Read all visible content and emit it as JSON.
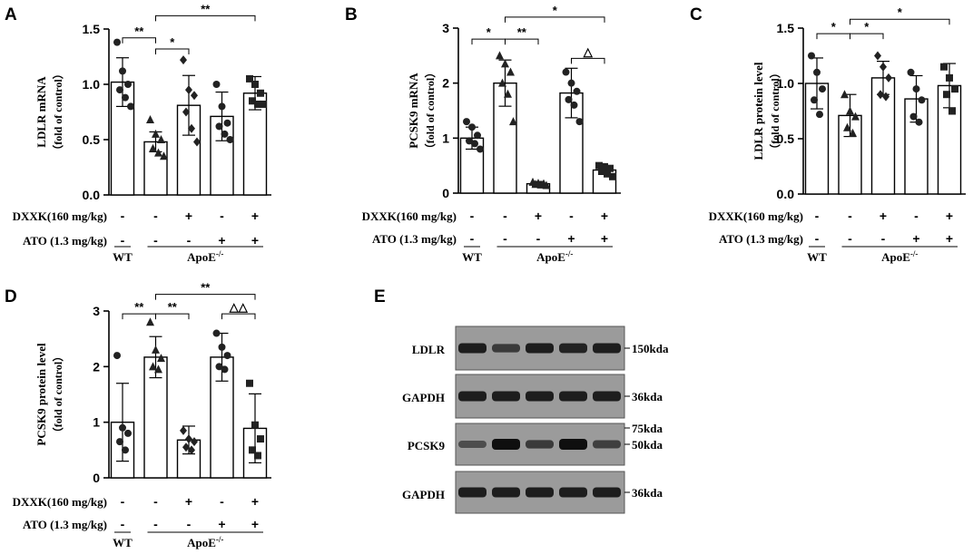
{
  "chart_data": [
    {
      "panel": "A",
      "type": "bar",
      "ylabel": "LDLR mRNA",
      "ylabel2": "（fold of control）",
      "ylim": [
        0,
        1.5
      ],
      "yticks": [
        "0.0",
        "0.5",
        "1.0",
        "1.5"
      ],
      "categories": [
        "WT",
        "ApoE-/-",
        "ApoE-/- + DXXK",
        "ApoE-/- + ATO",
        "ApoE-/- + DXXK + ATO"
      ],
      "values": [
        1.02,
        0.48,
        0.81,
        0.71,
        0.92
      ],
      "errors": [
        0.22,
        0.09,
        0.27,
        0.22,
        0.15
      ],
      "markers": [
        "circle",
        "triangle",
        "diamond",
        "circle",
        "square"
      ],
      "points": [
        [
          1.38,
          1.12,
          1.0,
          0.95,
          0.88,
          0.8
        ],
        [
          0.68,
          0.55,
          0.5,
          0.42,
          0.38,
          0.35
        ],
        [
          1.22,
          0.95,
          0.9,
          0.75,
          0.6,
          0.48
        ],
        [
          1.0,
          0.8,
          0.65,
          0.62,
          0.55,
          0.5
        ],
        [
          1.05,
          1.0,
          0.92,
          0.85,
          0.82,
          0.82
        ]
      ],
      "sig": [
        {
          "from": 0,
          "to": 1,
          "label": "**",
          "value": 1.42
        },
        {
          "from": 1,
          "to": 2,
          "label": "*",
          "value": 1.32
        },
        {
          "from": 1,
          "to": 4,
          "label": "**",
          "value": 1.62
        }
      ]
    },
    {
      "panel": "B",
      "type": "bar",
      "ylabel": "PCSK9 mRNA",
      "ylabel2": "（fold of control）",
      "ylim": [
        0,
        3
      ],
      "yticks": [
        "0",
        "1",
        "2",
        "3"
      ],
      "categories": [
        "WT",
        "ApoE-/-",
        "ApoE-/- + DXXK",
        "ApoE-/- + ATO",
        "ApoE-/- + DXXK + ATO"
      ],
      "values": [
        1.0,
        2.0,
        0.17,
        1.82,
        0.42
      ],
      "errors": [
        0.2,
        0.42,
        0.04,
        0.45,
        0.08
      ],
      "markers": [
        "circle",
        "triangle",
        "triangle",
        "circle",
        "square"
      ],
      "points": [
        [
          1.3,
          1.2,
          1.05,
          0.95,
          0.9,
          0.8
        ],
        [
          2.5,
          2.35,
          2.2,
          2.0,
          1.8,
          1.3
        ],
        [
          0.2,
          0.18,
          0.17,
          0.16,
          0.15,
          0.14
        ],
        [
          2.2,
          2.0,
          1.85,
          1.7,
          1.6,
          1.3
        ],
        [
          0.5,
          0.48,
          0.45,
          0.4,
          0.35,
          0.3
        ]
      ],
      "sig": [
        {
          "from": 0,
          "to": 1,
          "label": "*",
          "value": 2.8
        },
        {
          "from": 1,
          "to": 2,
          "label": "**",
          "value": 2.8
        },
        {
          "from": 3,
          "to": 4,
          "label": "△",
          "value": 2.45
        },
        {
          "from": 1,
          "to": 4,
          "label": "*",
          "value": 3.2
        }
      ]
    },
    {
      "panel": "C",
      "type": "bar",
      "ylabel": "LDLR  protein level",
      "ylabel2": "（fold of control）",
      "ylim": [
        0,
        1.5
      ],
      "yticks": [
        "0.0",
        "0.5",
        "1.0",
        "1.5"
      ],
      "categories": [
        "WT",
        "ApoE-/-",
        "ApoE-/- + DXXK",
        "ApoE-/- + ATO",
        "ApoE-/- + DXXK + ATO"
      ],
      "values": [
        1.0,
        0.71,
        1.05,
        0.86,
        0.98
      ],
      "errors": [
        0.23,
        0.19,
        0.15,
        0.21,
        0.2
      ],
      "markers": [
        "circle",
        "triangle",
        "diamond",
        "circle",
        "square"
      ],
      "points": [
        [
          1.25,
          1.1,
          0.95,
          0.85,
          0.72
        ],
        [
          0.9,
          0.75,
          0.7,
          0.6,
          0.55
        ],
        [
          1.25,
          1.15,
          1.05,
          0.9,
          0.88
        ],
        [
          1.1,
          0.95,
          0.85,
          0.7,
          0.65
        ],
        [
          1.15,
          1.05,
          0.95,
          0.9,
          0.75
        ]
      ],
      "sig": [
        {
          "from": 0,
          "to": 1,
          "label": "*",
          "value": 1.45
        },
        {
          "from": 1,
          "to": 2,
          "label": "*",
          "value": 1.45
        },
        {
          "from": 1,
          "to": 4,
          "label": "*",
          "value": 1.58
        }
      ]
    },
    {
      "panel": "D",
      "type": "bar",
      "ylabel": "PCSK9  protein level",
      "ylabel2": "（fold of control）",
      "ylim": [
        0,
        3
      ],
      "yticks": [
        "0",
        "1",
        "2",
        "3"
      ],
      "categories": [
        "WT",
        "ApoE-/-",
        "ApoE-/- + DXXK",
        "ApoE-/- + ATO",
        "ApoE-/- + DXXK + ATO"
      ],
      "values": [
        1.0,
        2.17,
        0.68,
        2.17,
        0.89
      ],
      "errors": [
        0.7,
        0.37,
        0.25,
        0.43,
        0.62
      ],
      "markers": [
        "circle",
        "triangle",
        "diamond",
        "circle",
        "square"
      ],
      "points": [
        [
          2.2,
          0.9,
          0.8,
          0.65,
          0.5
        ],
        [
          2.8,
          2.3,
          2.15,
          2.0,
          1.95
        ],
        [
          0.85,
          0.7,
          0.65,
          0.55,
          0.5
        ],
        [
          2.6,
          2.35,
          2.2,
          2.0,
          1.95
        ],
        [
          1.7,
          0.95,
          0.7,
          0.5,
          0.4
        ]
      ],
      "sig": [
        {
          "from": 0,
          "to": 1,
          "label": "**",
          "value": 2.95
        },
        {
          "from": 1,
          "to": 2,
          "label": "**",
          "value": 2.95
        },
        {
          "from": 3,
          "to": 4,
          "label": "△△",
          "value": 2.95
        },
        {
          "from": 1,
          "to": 4,
          "label": "**",
          "value": 3.3
        }
      ]
    }
  ],
  "treatment": {
    "dxxk_label": "DXXK(160 mg/kg)",
    "ato_label": "ATO (1.3 mg/kg)",
    "dxxk_signs": [
      "-",
      "-",
      "+",
      "-",
      "+"
    ],
    "ato_signs": [
      "-",
      "-",
      "-",
      "+",
      "+"
    ],
    "group_wt": "WT",
    "group_apoe": "ApoE",
    "group_apoe_sup": "-/-"
  },
  "blot": {
    "panel": "E",
    "bands": [
      {
        "label": "LDLR",
        "size": "150kda",
        "intensity": [
          0.85,
          0.55,
          0.85,
          0.8,
          0.85
        ]
      },
      {
        "label": "GAPDH",
        "size": "36kda",
        "intensity": [
          0.85,
          0.85,
          0.85,
          0.85,
          0.85
        ]
      },
      {
        "label": "PCSK9",
        "size": "50kda",
        "size_top": "75kda",
        "intensity": [
          0.35,
          1.0,
          0.55,
          1.0,
          0.5
        ]
      },
      {
        "label": "GAPDH",
        "size": "36kda",
        "intensity": [
          0.85,
          0.85,
          0.85,
          0.85,
          0.85
        ]
      }
    ]
  }
}
